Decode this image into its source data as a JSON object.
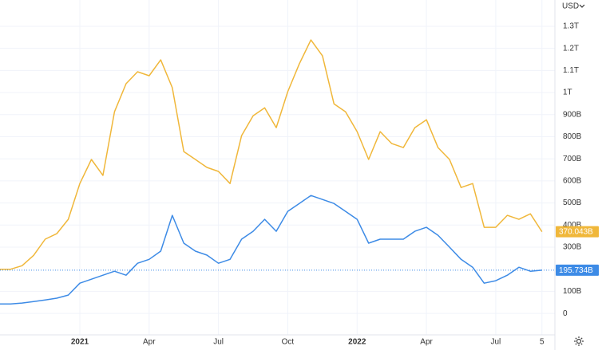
{
  "chart_data": {
    "type": "line",
    "currency": "USD",
    "categories": [
      null,
      null,
      null,
      null,
      null,
      null,
      null,
      "2021",
      null,
      null,
      null,
      null,
      null,
      "Apr",
      null,
      null,
      null,
      null,
      null,
      "Jul",
      null,
      null,
      null,
      null,
      null,
      "Oct",
      null,
      null,
      null,
      null,
      null,
      "2022",
      null,
      null,
      null,
      null,
      null,
      "Apr",
      null,
      null,
      null,
      null,
      null,
      "Jul",
      null,
      null,
      null,
      "5"
    ],
    "series": [
      {
        "color": "#f0b73a",
        "values": [
          200,
          200,
          216,
          263,
          336,
          361,
          426,
          588,
          697,
          625,
          913,
          1040,
          1094,
          1076,
          1148,
          1022,
          733,
          697,
          661,
          643,
          588,
          805,
          895,
          931,
          841,
          1004,
          1130,
          1238,
          1166,
          949,
          913,
          823,
          697,
          823,
          769,
          751,
          841,
          877,
          751,
          697,
          570,
          588,
          390,
          390,
          444,
          426,
          451,
          370.043
        ],
        "value_labels": {
          "47": "370.043B"
        }
      },
      {
        "color": "#3d8be6",
        "values": [
          43,
          43,
          47,
          54,
          61,
          69,
          83,
          137,
          155,
          173,
          191,
          173,
          227,
          245,
          282,
          444,
          318,
          282,
          264,
          227,
          245,
          336,
          372,
          426,
          372,
          462,
          498,
          534,
          516,
          498,
          462,
          426,
          318,
          336,
          336,
          336,
          372,
          390,
          354,
          300,
          245,
          209,
          137,
          148,
          173,
          209,
          191,
          195.734
        ],
        "value_labels": {
          "47": "195.734B"
        }
      }
    ],
    "ylim": [
      -97,
      1419
    ],
    "yticks": [
      0,
      {
        "value": 100,
        "label": "100B"
      },
      {
        "value": 300,
        "label": "300B"
      },
      {
        "value": 400,
        "label": "400B"
      },
      {
        "value": 500,
        "label": "500B"
      },
      {
        "value": 600,
        "label": "600B"
      },
      {
        "value": 700,
        "label": "700B"
      },
      {
        "value": 800,
        "label": "800B"
      },
      {
        "value": 900,
        "label": "900B"
      },
      {
        "value": 1000,
        "label": "1T"
      },
      {
        "value": 1100,
        "label": "1.1T"
      },
      {
        "value": 1200,
        "label": "1.2T"
      },
      {
        "value": 1300,
        "label": "1.3T"
      }
    ],
    "grid": true
  }
}
